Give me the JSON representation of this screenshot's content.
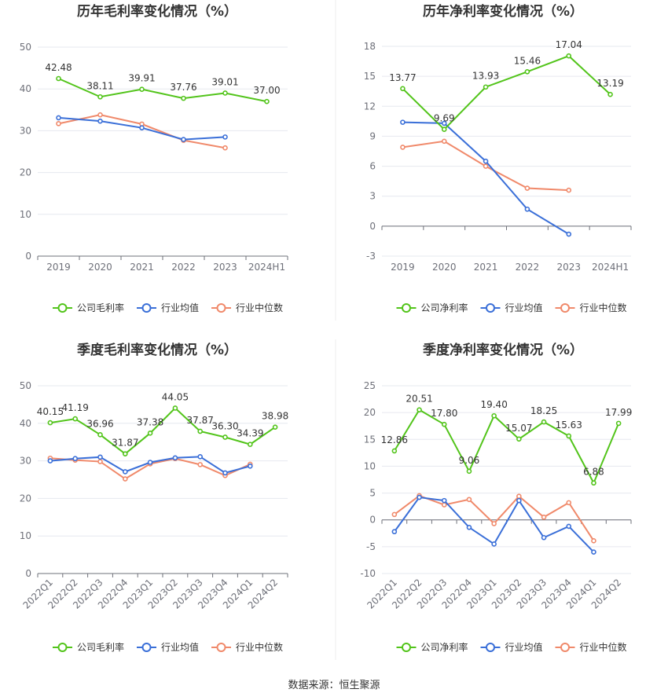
{
  "source_label": "数据来源：恒生聚源",
  "colors": {
    "company": "#52c41a",
    "avg": "#3a6fd8",
    "median": "#f0896a"
  },
  "chart_data": [
    {
      "type": "line",
      "title": "历年毛利率变化情况（%）",
      "categories": [
        "2019",
        "2020",
        "2021",
        "2022",
        "2023",
        "2024H1"
      ],
      "ylim": [
        0,
        50
      ],
      "yticks": [
        0,
        10,
        20,
        30,
        40,
        50
      ],
      "rotate_x_labels": false,
      "series": [
        {
          "name": "公司毛利率",
          "values": [
            42.48,
            38.11,
            39.91,
            37.76,
            39.01,
            37.0
          ],
          "labels": [
            "42.48",
            "38.11",
            "39.91",
            "37.76",
            "39.01",
            "37.00"
          ]
        },
        {
          "name": "行业均值",
          "values": [
            33.1,
            32.3,
            30.7,
            27.9,
            28.5,
            null
          ],
          "labels": []
        },
        {
          "name": "行业中位数",
          "values": [
            31.7,
            33.8,
            31.6,
            27.7,
            25.9,
            null
          ],
          "labels": []
        }
      ],
      "legend": {
        "position": "bottom"
      },
      "grid": true
    },
    {
      "type": "line",
      "title": "历年净利率变化情况（%）",
      "categories": [
        "2019",
        "2020",
        "2021",
        "2022",
        "2023",
        "2024H1"
      ],
      "ylim": [
        -3,
        18
      ],
      "yticks": [
        -3,
        0,
        3,
        6,
        9,
        12,
        15,
        18
      ],
      "rotate_x_labels": false,
      "series": [
        {
          "name": "公司净利率",
          "values": [
            13.77,
            9.69,
            13.93,
            15.46,
            17.04,
            13.19
          ],
          "labels": [
            "13.77",
            "9.69",
            "13.93",
            "15.46",
            "17.04",
            "13.19"
          ]
        },
        {
          "name": "行业均值",
          "values": [
            10.4,
            10.3,
            6.5,
            1.7,
            -0.8,
            null
          ],
          "labels": []
        },
        {
          "name": "行业中位数",
          "values": [
            7.9,
            8.5,
            6.0,
            3.8,
            3.6,
            null
          ],
          "labels": []
        }
      ],
      "legend": {
        "position": "bottom"
      },
      "grid": true
    },
    {
      "type": "line",
      "title": "季度毛利率变化情况（%）",
      "categories": [
        "2022Q1",
        "2022Q2",
        "2022Q3",
        "2022Q4",
        "2023Q1",
        "2023Q2",
        "2023Q3",
        "2023Q4",
        "2024Q1",
        "2024Q2"
      ],
      "ylim": [
        0,
        50
      ],
      "yticks": [
        0,
        10,
        20,
        30,
        40,
        50
      ],
      "rotate_x_labels": true,
      "series": [
        {
          "name": "公司毛利率",
          "values": [
            40.15,
            41.19,
            36.96,
            31.87,
            37.38,
            44.05,
            37.87,
            36.3,
            34.39,
            38.98
          ],
          "labels": [
            "40.15",
            "41.19",
            "36.96",
            "31.87",
            "37.38",
            "44.05",
            "37.87",
            "36.30",
            "34.39",
            "38.98"
          ]
        },
        {
          "name": "行业均值",
          "values": [
            30.0,
            30.6,
            31.0,
            27.1,
            29.6,
            30.8,
            31.1,
            26.8,
            28.6,
            null
          ],
          "labels": []
        },
        {
          "name": "行业中位数",
          "values": [
            30.7,
            30.2,
            29.8,
            25.2,
            29.2,
            30.6,
            29.0,
            26.1,
            29.1,
            null
          ],
          "labels": []
        }
      ],
      "legend": {
        "position": "bottom"
      },
      "grid": true
    },
    {
      "type": "line",
      "title": "季度净利率变化情况（%）",
      "categories": [
        "2022Q1",
        "2022Q2",
        "2022Q3",
        "2022Q4",
        "2023Q1",
        "2023Q2",
        "2023Q3",
        "2023Q4",
        "2024Q1",
        "2024Q2"
      ],
      "ylim": [
        -10,
        25
      ],
      "yticks": [
        -10,
        -5,
        0,
        5,
        10,
        15,
        20,
        25
      ],
      "rotate_x_labels": true,
      "series": [
        {
          "name": "公司净利率",
          "values": [
            12.86,
            20.51,
            17.8,
            9.06,
            19.4,
            15.07,
            18.25,
            15.63,
            6.88,
            17.99
          ],
          "labels": [
            "12.86",
            "20.51",
            "17.80",
            "9.06",
            "19.40",
            "15.07",
            "18.25",
            "15.63",
            "6.88",
            "17.99"
          ]
        },
        {
          "name": "行业均值",
          "values": [
            -2.2,
            4.2,
            3.6,
            -1.4,
            -4.5,
            3.6,
            -3.3,
            -1.2,
            -6.0,
            null
          ],
          "labels": []
        },
        {
          "name": "行业中位数",
          "values": [
            1.0,
            4.5,
            2.8,
            3.8,
            -0.7,
            4.4,
            0.5,
            3.2,
            -3.9,
            null
          ],
          "labels": []
        }
      ],
      "legend": {
        "position": "bottom"
      },
      "grid": true
    }
  ]
}
